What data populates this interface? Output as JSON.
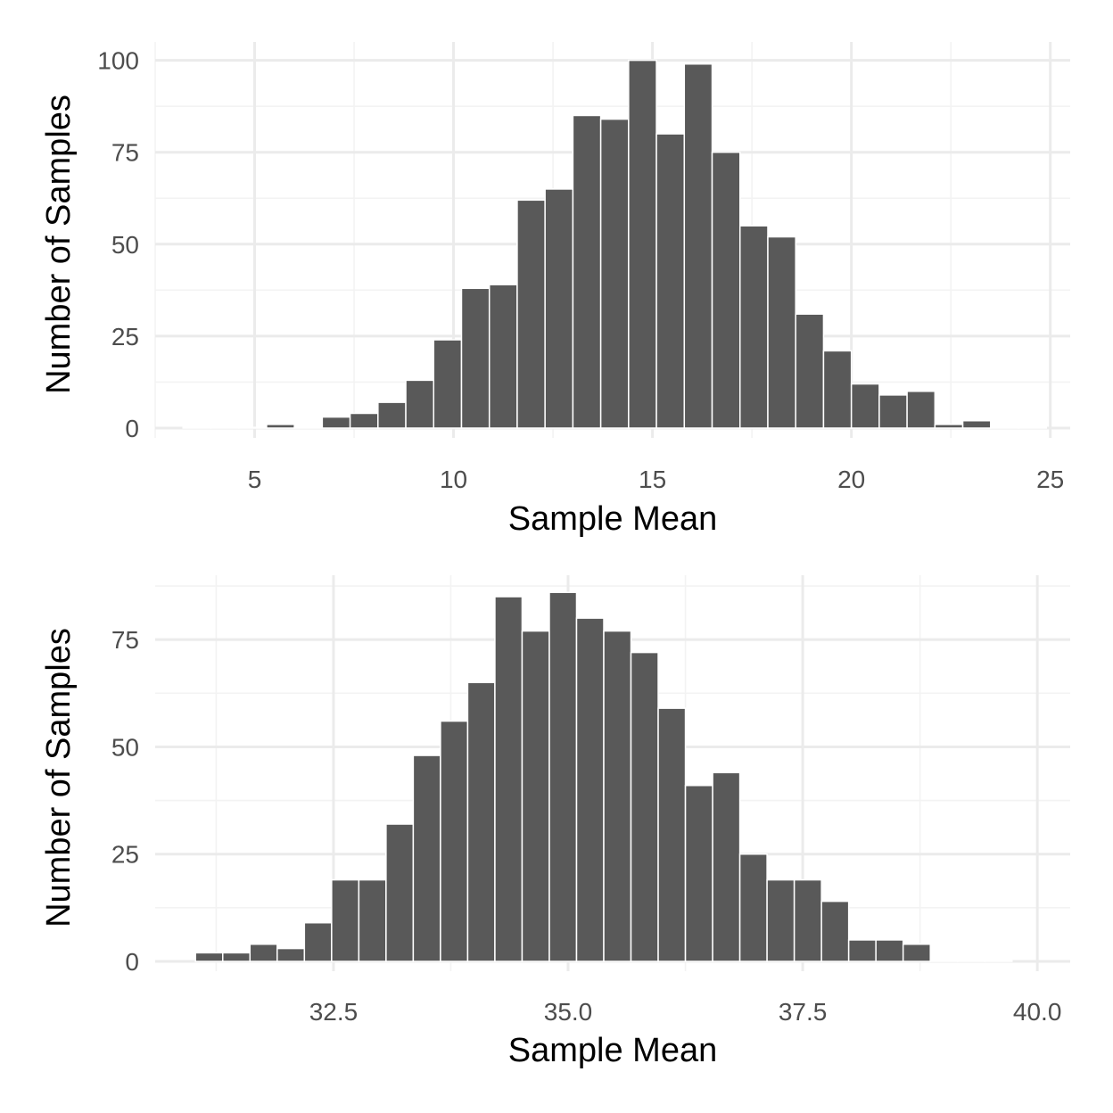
{
  "chart_data": [
    {
      "type": "bar",
      "xlabel": "Sample Mean",
      "ylabel": "Number of Samples",
      "xlim": [
        2.5,
        25.5
      ],
      "ylim": [
        0,
        105
      ],
      "xticks": [
        5,
        10,
        15,
        20,
        25
      ],
      "xtick_labels": [
        "5",
        "10",
        "15",
        "20",
        "25"
      ],
      "yticks": [
        0,
        25,
        50,
        75,
        100
      ],
      "ytick_labels": [
        "0",
        "25",
        "50",
        "75",
        "100"
      ],
      "grid": true,
      "bin_width": 0.7,
      "bin_starts": [
        3.2,
        3.9,
        4.6,
        5.3,
        6.0,
        6.7,
        7.4,
        8.1,
        8.8,
        9.5,
        10.2,
        10.9,
        11.6,
        12.3,
        13.0,
        13.7,
        14.4,
        15.1,
        15.8,
        16.5,
        17.2,
        17.9,
        18.6,
        19.3,
        20.0,
        20.7,
        21.4,
        22.1,
        22.8,
        23.5,
        24.2
      ],
      "values": [
        0,
        0,
        0,
        1,
        0,
        3,
        4,
        7,
        13,
        24,
        38,
        39,
        62,
        65,
        85,
        84,
        100,
        80,
        99,
        75,
        55,
        52,
        31,
        21,
        12,
        9,
        10,
        1,
        2,
        0,
        0
      ]
    },
    {
      "type": "bar",
      "xlabel": "Sample Mean",
      "ylabel": "Number of Samples",
      "xlim": [
        30.6,
        40.35
      ],
      "ylim": [
        0,
        90
      ],
      "xticks": [
        32.5,
        35.0,
        37.5,
        40.0
      ],
      "xtick_labels": [
        "32.5",
        "35.0",
        "37.5",
        "40.0"
      ],
      "yticks": [
        0,
        25,
        50,
        75
      ],
      "ytick_labels": [
        "0",
        "25",
        "50",
        "75"
      ],
      "grid": true,
      "bin_width": 0.29,
      "bin_starts": [
        31.03,
        31.32,
        31.61,
        31.9,
        32.19,
        32.48,
        32.77,
        33.06,
        33.35,
        33.64,
        33.93,
        34.22,
        34.51,
        34.8,
        35.09,
        35.38,
        35.67,
        35.96,
        36.25,
        36.54,
        36.83,
        37.12,
        37.41,
        37.7,
        37.99,
        38.28,
        38.57,
        38.86,
        39.15,
        39.44
      ],
      "values": [
        2,
        2,
        4,
        3,
        9,
        19,
        19,
        32,
        48,
        56,
        65,
        85,
        77,
        86,
        80,
        77,
        72,
        59,
        41,
        44,
        25,
        19,
        19,
        14,
        5,
        5,
        4,
        0,
        0,
        0
      ]
    }
  ]
}
